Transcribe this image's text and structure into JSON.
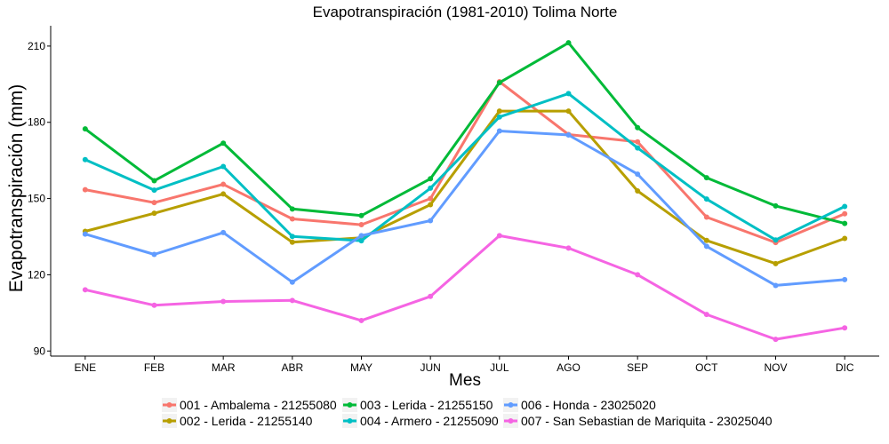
{
  "chart_data": {
    "type": "line",
    "title": "Evapotranspiración (1981-2010)  Tolima Norte",
    "xlabel": "Mes",
    "ylabel": "Evapotranspiración  (mm)",
    "categories": [
      "ENE",
      "FEB",
      "MAR",
      "ABR",
      "MAY",
      "JUN",
      "JUL",
      "AGO",
      "SEP",
      "OCT",
      "NOV",
      "DIC"
    ],
    "ylim": [
      88,
      218
    ],
    "yticks": [
      90,
      120,
      150,
      180,
      210
    ],
    "grid": false,
    "legend_position": "bottom",
    "series": [
      {
        "name": "001 - Ambalema - 21255080",
        "color": "#F8766D",
        "values": [
          153.5,
          148.4,
          155.6,
          142.0,
          139.7,
          150.0,
          196.0,
          175.2,
          172.3,
          142.7,
          132.7,
          144.0
        ]
      },
      {
        "name": "002 - Lerida - 21255140",
        "color": "#B79F00",
        "values": [
          137.1,
          144.2,
          151.8,
          132.8,
          134.6,
          147.6,
          184.4,
          184.4,
          153.0,
          133.5,
          124.4,
          134.3
        ]
      },
      {
        "name": "003 - Lerida - 21255150",
        "color": "#00BA38",
        "values": [
          177.4,
          157.0,
          171.8,
          145.9,
          143.3,
          157.8,
          195.6,
          211.3,
          177.9,
          158.2,
          147.1,
          140.2
        ]
      },
      {
        "name": "004 - Armero - 21255090",
        "color": "#00BFC4",
        "values": [
          165.3,
          153.3,
          162.6,
          135.1,
          133.4,
          154.1,
          182.1,
          191.3,
          169.9,
          149.8,
          133.7,
          146.9
        ]
      },
      {
        "name": "006 - Honda - 23025020",
        "color": "#619CFF",
        "values": [
          136.0,
          128.0,
          136.6,
          117.1,
          135.4,
          141.3,
          176.6,
          175.0,
          159.6,
          131.2,
          115.8,
          118.1
        ]
      },
      {
        "name": "007 - San Sebastian de Mariquita - 23025040",
        "color": "#F564E3",
        "values": [
          114.1,
          108.0,
          109.5,
          109.9,
          102.0,
          111.5,
          135.4,
          130.5,
          120.0,
          104.4,
          94.6,
          99.1
        ]
      }
    ]
  }
}
